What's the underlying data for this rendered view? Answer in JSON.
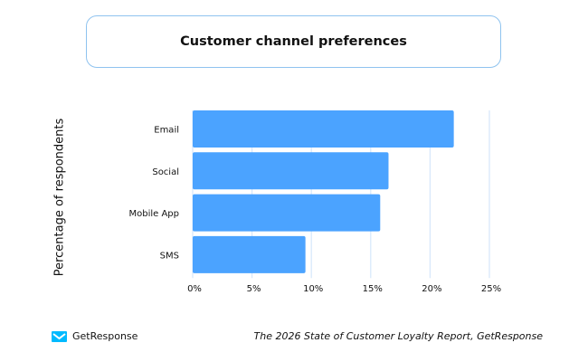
{
  "chart_data": {
    "type": "bar",
    "orientation": "horizontal",
    "title": "Customer channel preferences",
    "ylabel": "Percentage of respondents",
    "xlabel": "",
    "categories": [
      "Email",
      "Social",
      "Mobile  App",
      "SMS"
    ],
    "values": [
      22,
      16.5,
      15.8,
      9.5
    ],
    "xlim": [
      0,
      25
    ],
    "xticks": [
      "0%",
      "5%",
      "10%",
      "15%",
      "20%",
      "25%"
    ],
    "grid": "vertical",
    "bar_color": "#4ba3ff",
    "grid_color": "#d6e7fb"
  },
  "footer": {
    "brand": "GetResponse",
    "brand_color": "#00baff",
    "source": "The 2026 State of Customer Loyalty Report, GetResponse"
  }
}
